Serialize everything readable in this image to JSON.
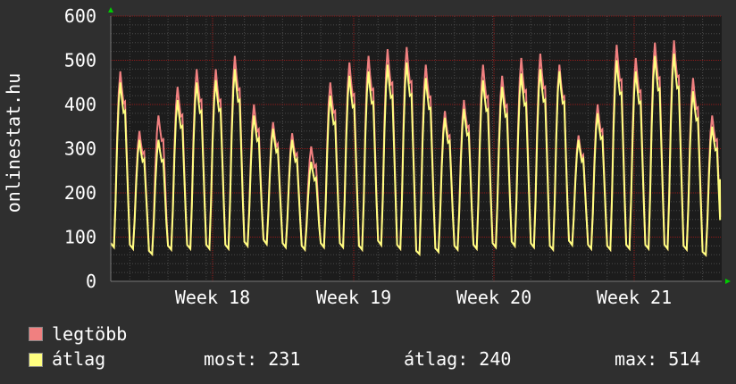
{
  "chart_data": {
    "type": "line",
    "ylabel": "onlinestat.hu",
    "ylim": [
      0,
      600
    ],
    "yticks": [
      "0",
      "100",
      "200",
      "300",
      "400",
      "500",
      "600"
    ],
    "xticks": [
      "Week 18",
      "Week 19",
      "Week 20",
      "Week 21"
    ],
    "grid": true,
    "x_unit": "day",
    "daily_peak_legtobb": [
      475,
      340,
      375,
      440,
      480,
      480,
      510,
      400,
      360,
      335,
      305,
      450,
      495,
      510,
      525,
      530,
      490,
      385,
      410,
      490,
      465,
      505,
      515,
      490,
      330,
      400,
      535,
      505,
      540,
      545,
      460,
      375
    ],
    "daily_peak_atlag": [
      450,
      320,
      320,
      410,
      450,
      455,
      480,
      375,
      345,
      320,
      270,
      420,
      465,
      475,
      490,
      495,
      460,
      370,
      390,
      455,
      440,
      470,
      480,
      475,
      320,
      380,
      500,
      475,
      510,
      515,
      430,
      350
    ],
    "daily_min": [
      75,
      72,
      60,
      70,
      72,
      72,
      72,
      78,
      82,
      75,
      70,
      75,
      75,
      70,
      80,
      72,
      60,
      65,
      70,
      72,
      75,
      78,
      75,
      70,
      80,
      72,
      70,
      72,
      72,
      72,
      70,
      58
    ],
    "series": [
      {
        "name": "legtöbb",
        "color": "#f08080"
      },
      {
        "name": "átlag",
        "color": "#ffff80"
      }
    ]
  },
  "legend": {
    "legtobb": "legtöbb",
    "atlag": "átlag"
  },
  "stats": {
    "most": "most: 231",
    "atlag": "átlag: 240",
    "max": "max: 514"
  },
  "colors": {
    "background": "#2f2f2f",
    "plot": "#1c1c1c",
    "grid_major": "#8b1a1a",
    "legtobb": "#f08080",
    "atlag": "#ffff80",
    "axis_arrow": "#00cc00"
  }
}
